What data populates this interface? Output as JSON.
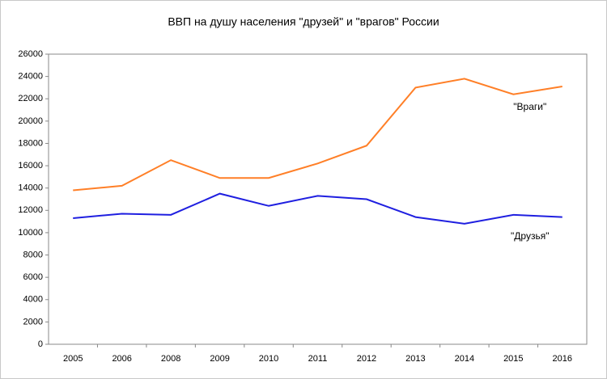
{
  "chart_data": {
    "type": "line",
    "title": "ВВП на душу населения \"друзей\" и \"врагов\" России",
    "categories": [
      "2005",
      "2006",
      "2008",
      "2009",
      "2010",
      "2011",
      "2012",
      "2013",
      "2014",
      "2015",
      "2016"
    ],
    "series": [
      {
        "name": "\"Враги\"",
        "color": "#ff7f27",
        "values": [
          13800,
          14200,
          16500,
          14900,
          14900,
          16200,
          17800,
          23000,
          23800,
          22400,
          23100
        ]
      },
      {
        "name": "\"Друзья\"",
        "color": "#1f1fe0",
        "values": [
          11300,
          11700,
          11600,
          13500,
          12400,
          13300,
          13000,
          11400,
          10800,
          11600,
          11400
        ]
      }
    ],
    "ylim": [
      0,
      26000
    ],
    "yticks": [
      0,
      2000,
      4000,
      6000,
      8000,
      10000,
      12000,
      14000,
      16000,
      18000,
      20000,
      22000,
      24000,
      26000
    ],
    "grid": false
  }
}
